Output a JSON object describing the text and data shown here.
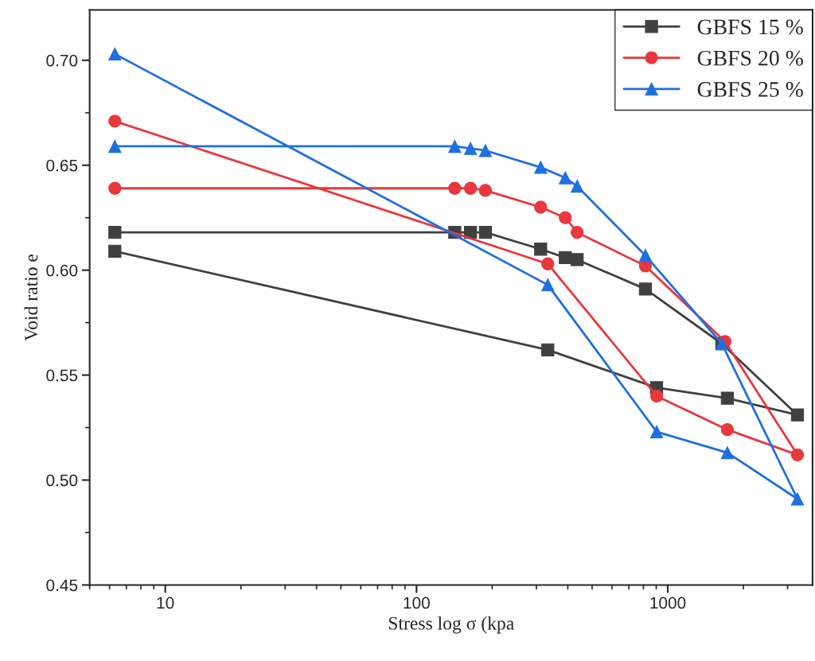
{
  "chart_data": {
    "type": "line",
    "xlabel": "Stress log σ (kpa",
    "ylabel": "Void ratio e",
    "log": "x",
    "xlim": [
      5,
      3770
    ],
    "ylim": [
      0.45,
      0.724
    ],
    "xticks": [
      10,
      100,
      1000
    ],
    "yticks": [
      {
        "value": 0.45,
        "label": "0.45"
      },
      {
        "value": 0.5,
        "label": "0.50"
      },
      {
        "value": 0.55,
        "label": "0.55"
      },
      {
        "value": 0.6,
        "label": "0.60"
      },
      {
        "value": 0.65,
        "label": "0.65"
      },
      {
        "value": 0.7,
        "label": "0.70"
      }
    ],
    "grid": false,
    "legend": "top right",
    "series": [
      {
        "name": "GBFS 15 %",
        "color": "#404040",
        "marker": "square",
        "x": [
          6.3,
          142,
          164,
          188,
          312,
          391,
          436,
          815,
          1641,
          3283,
          1727,
          903,
          333,
          6.3
        ],
        "values": [
          0.618,
          0.618,
          0.618,
          0.618,
          0.61,
          0.606,
          0.605,
          0.591,
          0.565,
          0.531,
          0.539,
          0.544,
          0.562,
          0.609
        ]
      },
      {
        "name": "GBFS 20 %",
        "color": "#e8383d",
        "marker": "circle",
        "x": [
          6.3,
          142,
          164,
          188,
          312,
          391,
          436,
          815,
          1690,
          3283,
          1727,
          903,
          333,
          6.3
        ],
        "values": [
          0.639,
          0.639,
          0.639,
          0.638,
          0.63,
          0.625,
          0.618,
          0.602,
          0.566,
          0.512,
          0.524,
          0.54,
          0.603,
          0.671
        ]
      },
      {
        "name": "GBFS 25 %",
        "color": "#1f6fe0",
        "marker": "triangle",
        "x": [
          6.3,
          142,
          164,
          188,
          312,
          391,
          436,
          815,
          1641,
          3283,
          1727,
          903,
          333,
          6.3
        ],
        "values": [
          0.659,
          0.659,
          0.658,
          0.657,
          0.649,
          0.644,
          0.64,
          0.607,
          0.565,
          0.491,
          0.513,
          0.523,
          0.593,
          0.703
        ]
      }
    ]
  }
}
